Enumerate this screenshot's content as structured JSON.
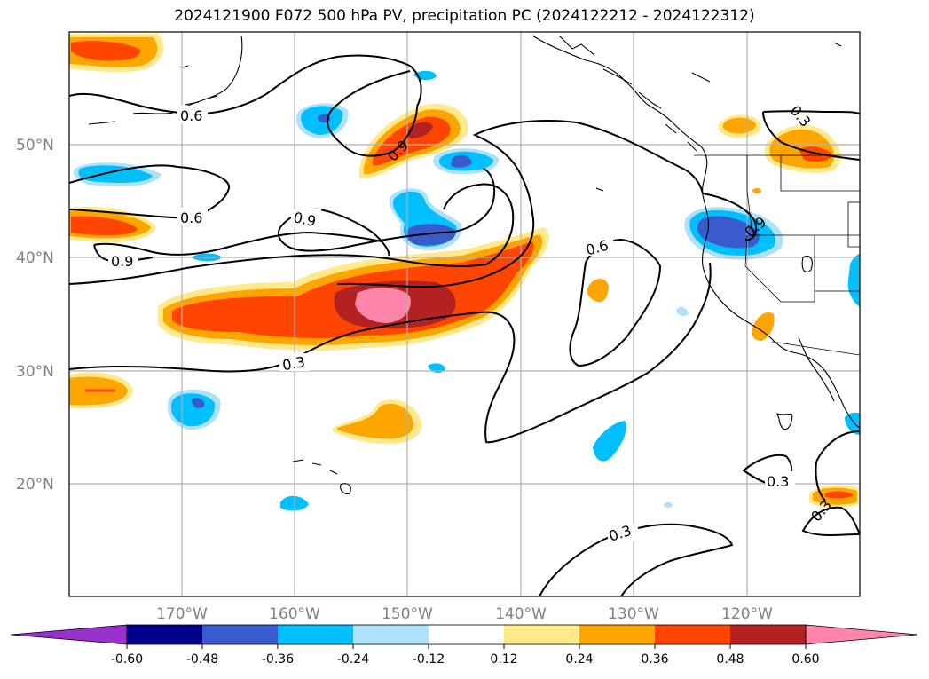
{
  "title": "2024121900 F072 500 hPa PV, precipitation PC (2024122212 - 2024122312)",
  "lat_labels": [
    "50°N",
    "40°N",
    "30°N",
    "20°N"
  ],
  "lon_labels": [
    "170°W",
    "160°W",
    "150°W",
    "140°W",
    "130°W",
    "120°W"
  ],
  "colorbar": {
    "ticks": [
      "-0.60",
      "-0.48",
      "-0.36",
      "-0.24",
      "-0.12",
      "0.12",
      "0.24",
      "0.36",
      "0.48",
      "0.60"
    ],
    "colors": [
      "#9932cc",
      "#00008b",
      "#3a5bcd",
      "#00bfff",
      "#afe2fa",
      "#ffffff",
      "#ffe98a",
      "#ffa500",
      "#ff4500",
      "#b22222",
      "#ff85aa"
    ]
  },
  "contour_labels": [
    "0.6",
    "0.6",
    "0.9",
    "0.9",
    "0.9",
    "0.6",
    "0.3",
    "0.3",
    "0.3",
    "0.3",
    "0.3",
    "0.9"
  ],
  "colors": {
    "grid": "#b0b0b0",
    "coast": "#000000",
    "contour": "#000000"
  }
}
